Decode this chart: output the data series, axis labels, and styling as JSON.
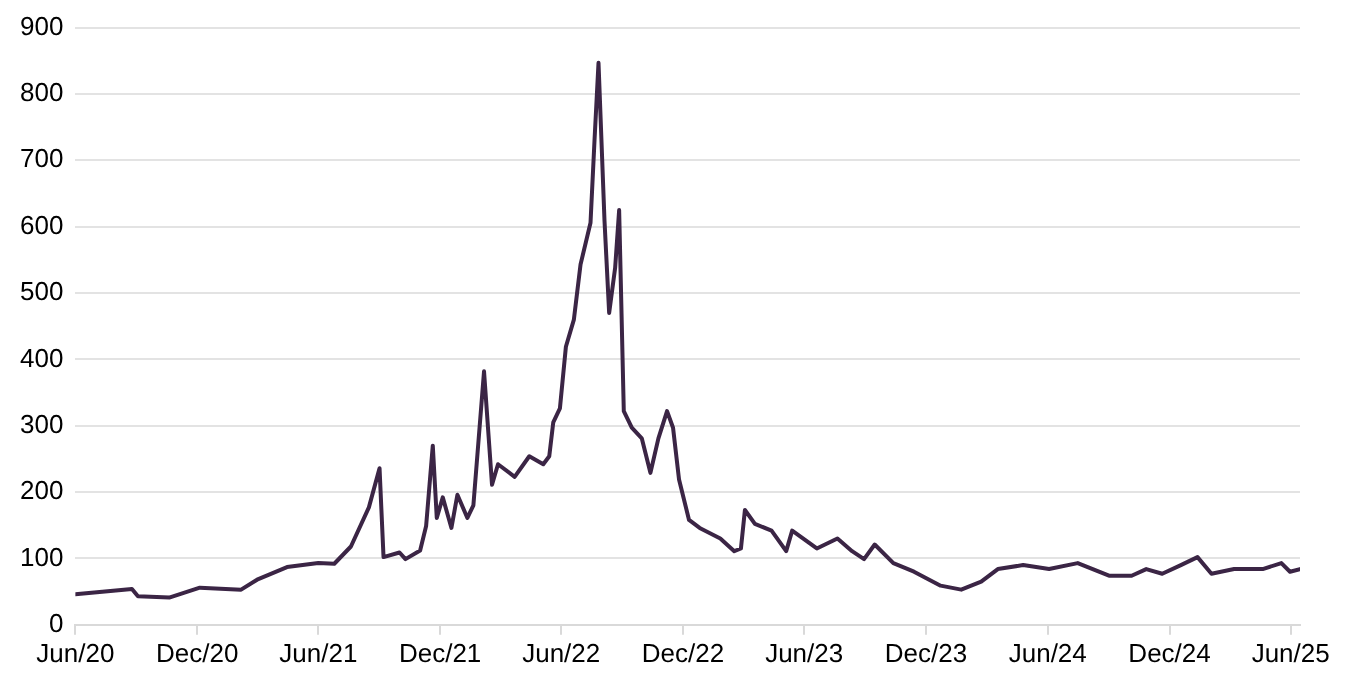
{
  "chart_data": {
    "type": "line",
    "grid": "y",
    "marker": "none",
    "line_style": "solid",
    "legend": false,
    "xlim": [
      "2020-06-01",
      "2025-06-15"
    ],
    "ylim": [
      0,
      900
    ],
    "yticks": [
      0,
      100,
      200,
      300,
      400,
      500,
      600,
      700,
      800,
      900
    ],
    "xticks": [
      {
        "value": "2020-06-01",
        "label": "Jun/20"
      },
      {
        "value": "2020-12-01",
        "label": "Dec/20"
      },
      {
        "value": "2021-06-01",
        "label": "Jun/21"
      },
      {
        "value": "2021-12-01",
        "label": "Dec/21"
      },
      {
        "value": "2022-06-01",
        "label": "Jun/22"
      },
      {
        "value": "2022-12-01",
        "label": "Dec/22"
      },
      {
        "value": "2023-06-01",
        "label": "Jun/23"
      },
      {
        "value": "2023-12-01",
        "label": "Dec/23"
      },
      {
        "value": "2024-06-01",
        "label": "Jun/24"
      },
      {
        "value": "2024-12-01",
        "label": "Dec/24"
      },
      {
        "value": "2025-06-01",
        "label": "Jun/25"
      }
    ],
    "series": [
      {
        "color": "#3b2545",
        "x": [
          "2020-06-01",
          "2020-08-25",
          "2020-09-03",
          "2020-10-20",
          "2020-12-05",
          "2021-02-05",
          "2021-03-01",
          "2021-04-15",
          "2021-06-01",
          "2021-06-25",
          "2021-07-20",
          "2021-08-16",
          "2021-09-01",
          "2021-09-07",
          "2021-10-01",
          "2021-10-10",
          "2021-11-01",
          "2021-11-10",
          "2021-11-20",
          "2021-11-26",
          "2021-12-05",
          "2021-12-18",
          "2021-12-27",
          "2022-01-11",
          "2022-01-20",
          "2022-02-05",
          "2022-02-17",
          "2022-02-26",
          "2022-03-23",
          "2022-04-14",
          "2022-05-05",
          "2022-05-14",
          "2022-05-20",
          "2022-05-30",
          "2022-06-08",
          "2022-06-20",
          "2022-06-30",
          "2022-07-15",
          "2022-07-21",
          "2022-07-27",
          "2022-08-05",
          "2022-08-12",
          "2022-08-21",
          "2022-08-27",
          "2022-09-03",
          "2022-09-15",
          "2022-09-30",
          "2022-10-13",
          "2022-10-25",
          "2022-11-07",
          "2022-11-16",
          "2022-11-25",
          "2022-12-10",
          "2022-12-26",
          "2023-01-26",
          "2023-02-16",
          "2023-02-26",
          "2023-03-04",
          "2023-03-19",
          "2023-04-13",
          "2023-05-05",
          "2023-05-14",
          "2023-06-20",
          "2023-07-21",
          "2023-08-12",
          "2023-08-30",
          "2023-09-15",
          "2023-10-13",
          "2023-11-13",
          "2023-12-23",
          "2024-01-23",
          "2024-02-22",
          "2024-03-18",
          "2024-04-25",
          "2024-06-03",
          "2024-07-16",
          "2024-09-01",
          "2024-10-05",
          "2024-10-27",
          "2024-11-20",
          "2024-12-18",
          "2025-01-12",
          "2025-02-02",
          "2025-03-08",
          "2025-04-20",
          "2025-05-18",
          "2025-05-31",
          "2025-06-15"
        ],
        "values": [
          46,
          54,
          43,
          41,
          56,
          53,
          68,
          87,
          93,
          92,
          118,
          177,
          236,
          102,
          109,
          99,
          112,
          149,
          270,
          161,
          192,
          146,
          196,
          161,
          180,
          382,
          211,
          242,
          223,
          254,
          242,
          254,
          305,
          326,
          419,
          460,
          543,
          606,
          730,
          847,
          609,
          470,
          538,
          625,
          322,
          297,
          281,
          229,
          281,
          322,
          297,
          219,
          158,
          146,
          130,
          111,
          115,
          173,
          152,
          142,
          111,
          142,
          115,
          130,
          111,
          99,
          121,
          93,
          80,
          59,
          53,
          65,
          84,
          90,
          84,
          93,
          74,
          74,
          84,
          77,
          90,
          102,
          77,
          84,
          84,
          93,
          80,
          84
        ]
      }
    ]
  }
}
